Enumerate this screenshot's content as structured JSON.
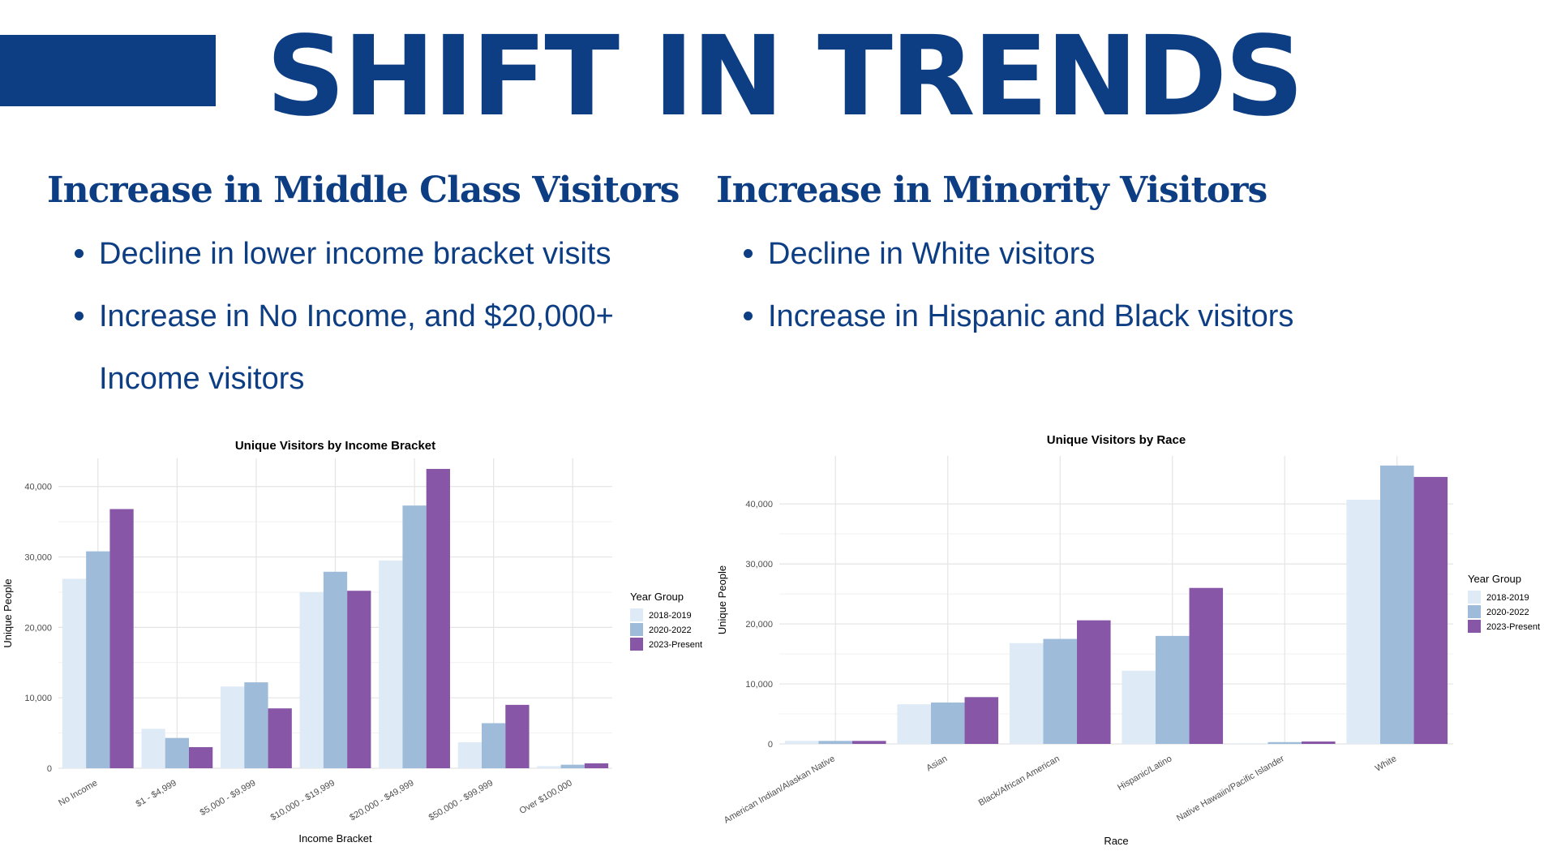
{
  "slide": {
    "title": "SHIFT IN TRENDS",
    "accent_color": "#0d3e84"
  },
  "left": {
    "heading": "Increase in Middle Class Visitors",
    "bullets": [
      "Decline in lower income bracket visits",
      "Increase in No Income, and $20,000+ Income visitors"
    ]
  },
  "right": {
    "heading": "Increase in Minority Visitors",
    "bullets": [
      "Decline in White visitors",
      "Increase in Hispanic and Black visitors"
    ]
  },
  "chart_data": [
    {
      "type": "bar",
      "title": "Unique Visitors by Income Bracket",
      "xlabel": "Income Bracket",
      "ylabel": "Unique People",
      "ylim": [
        0,
        44000
      ],
      "yticks": [
        0,
        10000,
        20000,
        30000,
        40000
      ],
      "ytick_labels": [
        "0",
        "10,000",
        "20,000",
        "30,000",
        "40,000"
      ],
      "grid": true,
      "legend_title": "Year Group",
      "legend_position": "right",
      "categories": [
        "No Income",
        "$1 - $4,999",
        "$5,000 - $9,999",
        "$10,000 - $19,999",
        "$20,000 - $49,999",
        "$50,000 - $99,999",
        "Over $100,000"
      ],
      "series": [
        {
          "name": "2018-2019",
          "color": "#deebf7",
          "values": [
            26900,
            5600,
            11600,
            25000,
            29500,
            3700,
            300
          ]
        },
        {
          "name": "2020-2022",
          "color": "#9ebcda",
          "values": [
            30800,
            4300,
            12200,
            27900,
            37300,
            6400,
            500
          ]
        },
        {
          "name": "2023-Present",
          "color": "#8856a7",
          "values": [
            36800,
            3000,
            8500,
            25200,
            42500,
            9000,
            700
          ]
        }
      ]
    },
    {
      "type": "bar",
      "title": "Unique Visitors by Race",
      "xlabel": "Race",
      "ylabel": "Unique People",
      "ylim": [
        0,
        48000
      ],
      "yticks": [
        0,
        10000,
        20000,
        30000,
        40000
      ],
      "ytick_labels": [
        "0",
        "10,000",
        "20,000",
        "30,000",
        "40,000"
      ],
      "grid": true,
      "legend_title": "Year Group",
      "legend_position": "right",
      "categories": [
        "American Indian/Alaskan Native",
        "Asian",
        "Black/African American",
        "Hispanic/Latino",
        "Native Hawaiin/Pacific Islander",
        "White"
      ],
      "series": [
        {
          "name": "2018-2019",
          "color": "#deebf7",
          "values": [
            500,
            6600,
            16800,
            12200,
            100,
            40700
          ]
        },
        {
          "name": "2020-2022",
          "color": "#9ebcda",
          "values": [
            500,
            6900,
            17500,
            18000,
            300,
            46400
          ]
        },
        {
          "name": "2023-Present",
          "color": "#8856a7",
          "values": [
            500,
            7800,
            20600,
            26000,
            400,
            44500
          ]
        }
      ]
    }
  ]
}
